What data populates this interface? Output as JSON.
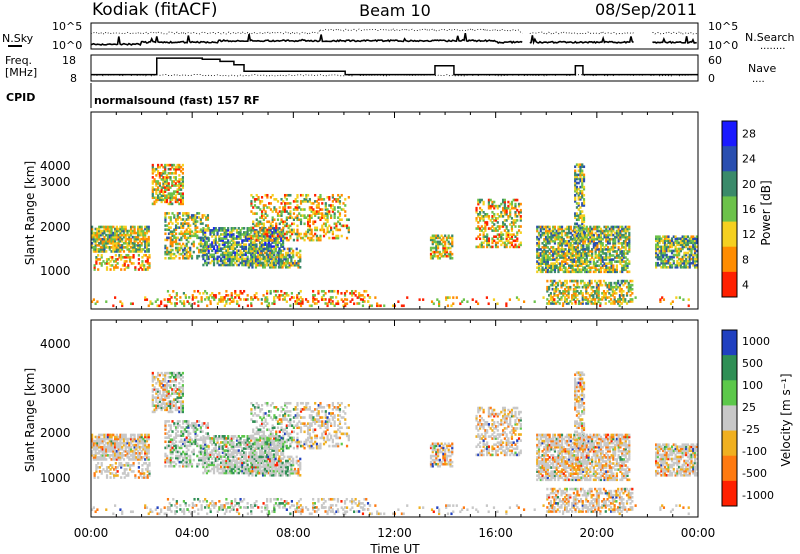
{
  "header": {
    "station": "Kodiak (fitACF)",
    "beam": "Beam 10",
    "date": "08/Sep/2011"
  },
  "noise_panel": {
    "left_label": "N.Sky",
    "right_label": "N.Search",
    "right_marker": "........",
    "left_ticks": [
      "10^5",
      "10^0"
    ],
    "right_ticks": [
      "10^5",
      "10^0"
    ]
  },
  "freq_panel": {
    "left_label_line1": "Freq.",
    "left_label_line2": "[MHz]",
    "left_ticks": [
      "18",
      "8"
    ],
    "right_label": "Nave",
    "right_marker": "....",
    "right_ticks": [
      "60",
      "0"
    ],
    "freq_steps_hours": [
      0,
      2.35,
      2.6,
      4.4,
      5.1,
      5.65,
      6.05,
      10.05,
      13.6,
      14.35,
      19.15,
      19.45,
      24
    ],
    "freq_steps_mhz": [
      10,
      10,
      17.5,
      17,
      16,
      14.5,
      11.5,
      10,
      14,
      10,
      14,
      10,
      10
    ]
  },
  "cpid": {
    "label": "CPID",
    "program": "normalsound (fast) 157 RF"
  },
  "power_panel": {
    "ylabel": "Slant Range [km]",
    "yticks": [
      "4000",
      "3000",
      "2000",
      "1000"
    ],
    "colorbar_label": "Power [dB]",
    "colorbar_ticks": [
      "28",
      "24",
      "20",
      "16",
      "12",
      "8",
      "4"
    ],
    "colors": [
      "#1a1aff",
      "#2a4fb0",
      "#3a8a6a",
      "#6cc24a",
      "#f5d020",
      "#ff8c00",
      "#ff2000"
    ]
  },
  "velocity_panel": {
    "ylabel": "Slant Range [km]",
    "yticks": [
      "4000",
      "3000",
      "2000",
      "1000"
    ],
    "colorbar_label": "Velocity [m s⁻¹]",
    "colorbar_ticks": [
      "1000",
      "500",
      "100",
      "25",
      "-25",
      "-100",
      "-500",
      "-1000"
    ],
    "colors": [
      "#2040c0",
      "#2f8f55",
      "#5cc84a",
      "#c8c8c8",
      "#f0b020",
      "#ff7a10",
      "#ff2000"
    ]
  },
  "x_axis": {
    "ticks": [
      "00:00",
      "04:00",
      "08:00",
      "12:00",
      "16:00",
      "20:00",
      "00:00"
    ],
    "label": "Time UT"
  }
}
